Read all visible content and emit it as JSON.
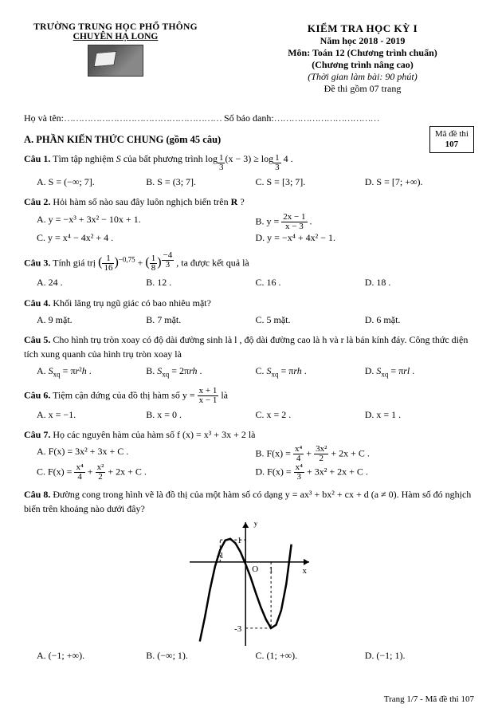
{
  "header": {
    "left_line1": "TRƯỜNG TRUNG HỌC PHỔ THÔNG",
    "left_line2": "CHUYÊN HẠ LONG",
    "right_title": "KIỂM TRA HỌC KỲ I",
    "right_year": "Năm học 2018 - 2019",
    "right_subject": "Môn: Toán 12 (Chương trình chuẩn)",
    "right_program": "(Chương trình nâng cao)",
    "right_time": "(Thời gian làm bài: 90 phút)",
    "right_pages": "Đề thi gồm 07 trang",
    "code_label": "Mã đề thi",
    "code_value": "107"
  },
  "nameline": {
    "name_label": "Họ và tên:",
    "sbd_label": "Số báo danh:"
  },
  "section_a": "A. PHẦN KIẾN THỨC CHUNG (gồm 45 câu)",
  "q1": {
    "stem_a": "Câu 1.",
    "stem_b": " Tìm tập nghiệm ",
    "stem_c": " của bất phương trình  log",
    "stem_d": "(x − 3) ≥ log",
    "stem_e": " 4 .",
    "A": "A.  S = (−∞; 7].",
    "B": "B.  S = (3; 7].",
    "C": "C.  S = [3; 7].",
    "D": "D.  S = [7; +∞)."
  },
  "q2": {
    "stem_a": "Câu 2.",
    "stem_b": " Hỏi hàm số nào sau đây luôn nghịch biến trên ",
    "stem_c": " ?",
    "A": "A.  y = −x³ + 3x² − 10x + 1.",
    "B_a": "B.  y = ",
    "B_n": "2x − 1",
    "B_d": "x − 3",
    "B_b": " .",
    "C": "C.  y = x⁴ − 4x² + 4 .",
    "D": "D.  y = −x⁴ + 4x² − 1."
  },
  "q3": {
    "stem_a": "Câu 3.",
    "stem_b": " Tính giá trị ",
    "p1n": "1",
    "p1d": "16",
    "e1": "−0,75",
    "p2n": "1",
    "p2d": "8",
    "e2n": "−4",
    "e2d": "3",
    "stem_c": " , ta được kết quả là",
    "A": "A.  24 .",
    "B": "B.  12 .",
    "C": "C.  16 .",
    "D": "D.  18 ."
  },
  "q4": {
    "stem_a": "Câu 4.",
    "stem_b": " Khối lăng trụ ngũ giác có bao nhiêu mặt?",
    "A": "A.  9 mặt.",
    "B": "B.  7 mặt.",
    "C": "C.  5 mặt.",
    "D": "D.  6 mặt."
  },
  "q5": {
    "stem_a": "Câu 5.",
    "stem_b": " Cho hình trụ tròn xoay có độ dài đường sinh là l , độ dài đường cao là h và r  là bán kính đáy. Công thức diện tích xung quanh của hình trụ tròn xoay là",
    "A": "A.  S  = πr²h .",
    "B": "B.  S  = 2πrh .",
    "C": "C.  S  = πrh .",
    "D": "D.  S  = πrl .",
    "sub": "xq"
  },
  "q6": {
    "stem_a": "Câu 6.",
    "stem_b": " Tiệm cận đứng của đồ thị hàm số  y = ",
    "fn": "x + 1",
    "fd": "x − 1",
    "stem_c": "  là",
    "A": "A.  x = −1.",
    "B": "B.  x = 0 .",
    "C": "C.  x = 2 .",
    "D": "D.  x = 1 ."
  },
  "q7": {
    "stem_a": "Câu 7.",
    "stem_b": " Họ các nguyên hàm của hàm số  f (x) = x³ + 3x + 2  là",
    "A": "A.  F(x) = 3x² + 3x + C .",
    "B_a": "B.  F(x) = ",
    "B_n1": "x⁴",
    "B_d1": "4",
    "B_plus1": " + ",
    "B_n2": "3x²",
    "B_d2": "2",
    "B_b": " + 2x + C .",
    "C_a": "C.  F(x) = ",
    "C_n1": "x⁴",
    "C_d1": "4",
    "C_plus1": " + ",
    "C_n2": "x²",
    "C_d2": "2",
    "C_b": " + 2x + C .",
    "D_a": "D.  F(x) = ",
    "D_n": "x⁴",
    "D_d": "3",
    "D_b": " + 3x² + 2x + C ."
  },
  "q8": {
    "stem_a": "Câu 8.",
    "stem_b": " Đường cong trong hình vẽ là đồ thị của một hàm số có dạng   y = ax³ + bx² + cx + d (a ≠ 0). Hàm số đó nghịch biến trên khoảng nào dưới đây?",
    "A": "A.  (−1; +∞).",
    "B": "B.  (−∞; 1).",
    "C": "C.  (1; +∞).",
    "D": "D.  (−1; 1)."
  },
  "graph": {
    "width": 150,
    "height": 155,
    "axis_color": "#000",
    "curve_color": "#000",
    "curve_width": 2.5,
    "x_range": [
      -2.2,
      2.5
    ],
    "y_range": [
      -3.8,
      1.8
    ],
    "ticks_x": [
      -1,
      1
    ],
    "ticks_y": [
      1,
      -3
    ],
    "label_x": "x",
    "label_y": "y",
    "origin": "O",
    "dashed_color": "#000",
    "cubic_points": [
      [
        -1.8,
        -3.6
      ],
      [
        -1.6,
        -2.5
      ],
      [
        -1.4,
        -1.25
      ],
      [
        -1.2,
        -0.2
      ],
      [
        -1.0,
        0.55
      ],
      [
        -0.8,
        0.98
      ],
      [
        -0.6,
        1.05
      ],
      [
        -0.4,
        0.85
      ],
      [
        -0.2,
        0.45
      ],
      [
        0.0,
        -0.1
      ],
      [
        0.2,
        -0.7
      ],
      [
        0.4,
        -1.4
      ],
      [
        0.6,
        -2.05
      ],
      [
        0.8,
        -2.6
      ],
      [
        1.0,
        -3.0
      ],
      [
        1.2,
        -2.85
      ],
      [
        1.4,
        -2.2
      ],
      [
        1.6,
        -1.0
      ],
      [
        1.8,
        0.8
      ]
    ],
    "dashed_lines": [
      {
        "from": [
          -1,
          0
        ],
        "to": [
          -1,
          1
        ]
      },
      {
        "from": [
          -1,
          1
        ],
        "to": [
          0,
          1
        ]
      },
      {
        "from": [
          1,
          0
        ],
        "to": [
          1,
          -3
        ]
      },
      {
        "from": [
          0,
          -3
        ],
        "to": [
          1,
          -3
        ]
      }
    ]
  },
  "footer": "Trang 1/7 - Mã đề thi 107"
}
